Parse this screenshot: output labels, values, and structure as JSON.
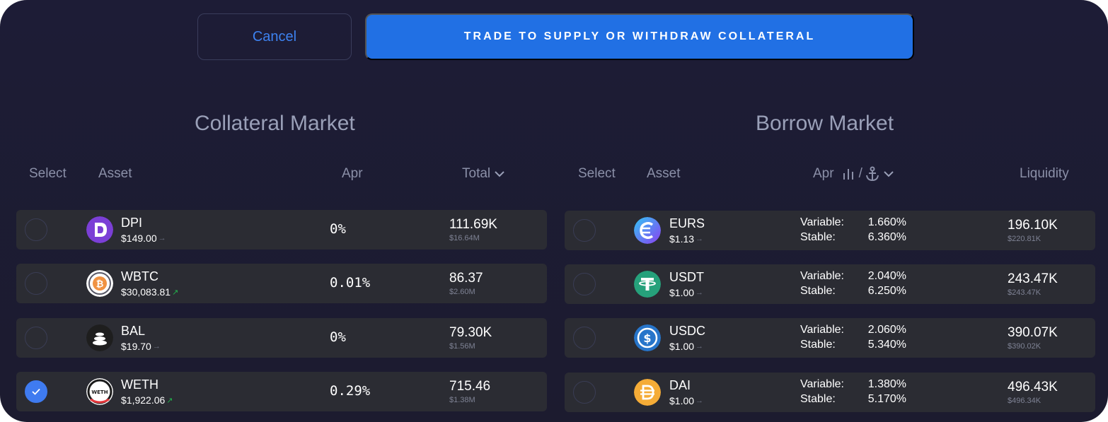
{
  "actions": {
    "cancel_label": "Cancel",
    "trade_label": "TRADE TO SUPPLY OR WITHDRAW COLLATERAL"
  },
  "collateral": {
    "title": "Collateral Market",
    "headers": {
      "select": "Select",
      "asset": "Asset",
      "apr": "Apr",
      "total": "Total"
    },
    "rows": [
      {
        "symbol": "DPI",
        "price": "$149.00",
        "trend": "flat",
        "apr": "0%",
        "total": "111.69K",
        "total_usd": "$16.64M",
        "selected": false,
        "icon": "dpi-icon"
      },
      {
        "symbol": "WBTC",
        "price": "$30,083.81",
        "trend": "up",
        "apr": "0.01%",
        "total": "86.37",
        "total_usd": "$2.60M",
        "selected": false,
        "icon": "wbtc-icon"
      },
      {
        "symbol": "BAL",
        "price": "$19.70",
        "trend": "flat",
        "apr": "0%",
        "total": "79.30K",
        "total_usd": "$1.56M",
        "selected": false,
        "icon": "bal-icon"
      },
      {
        "symbol": "WETH",
        "price": "$1,922.06",
        "trend": "up",
        "apr": "0.29%",
        "total": "715.46",
        "total_usd": "$1.38M",
        "selected": true,
        "icon": "weth-icon"
      }
    ]
  },
  "borrow": {
    "title": "Borrow Market",
    "headers": {
      "select": "Select",
      "asset": "Asset",
      "apr": "Apr",
      "apr_sep": "/",
      "liquidity": "Liquidity"
    },
    "variable_label": "Variable:",
    "stable_label": "Stable:",
    "rows": [
      {
        "symbol": "EURS",
        "price": "$1.13",
        "trend": "flat",
        "variable": "1.660%",
        "stable": "6.360%",
        "liquidity": "196.10K",
        "liquidity_usd": "$220.81K",
        "selected": false,
        "icon": "eurs-icon"
      },
      {
        "symbol": "USDT",
        "price": "$1.00",
        "trend": "flat",
        "variable": "2.040%",
        "stable": "6.250%",
        "liquidity": "243.47K",
        "liquidity_usd": "$243.47K",
        "selected": false,
        "icon": "usdt-icon"
      },
      {
        "symbol": "USDC",
        "price": "$1.00",
        "trend": "flat",
        "variable": "2.060%",
        "stable": "5.340%",
        "liquidity": "390.07K",
        "liquidity_usd": "$390.02K",
        "selected": false,
        "icon": "usdc-icon"
      },
      {
        "symbol": "DAI",
        "price": "$1.00",
        "trend": "flat",
        "variable": "1.380%",
        "stable": "5.170%",
        "liquidity": "496.43K",
        "liquidity_usd": "$496.34K",
        "selected": false,
        "icon": "dai-icon"
      }
    ]
  },
  "colors": {
    "background": "#1d1c36",
    "row": "#2b2c33",
    "accent": "#2170e4",
    "trend_up": "#22b24c"
  }
}
